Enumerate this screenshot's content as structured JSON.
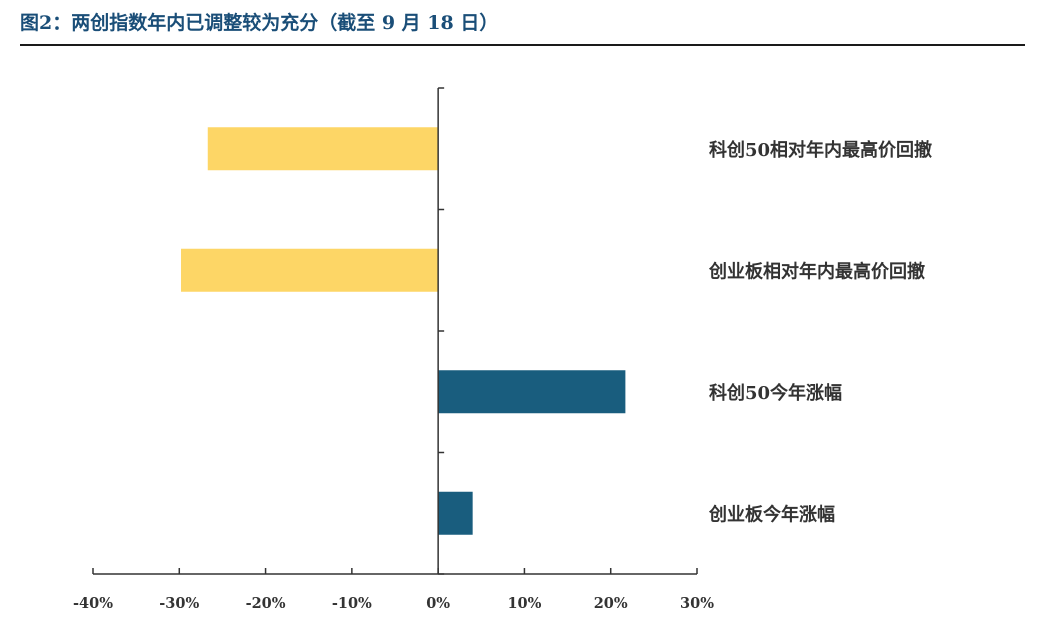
{
  "header": {
    "figure_title": "图2：两创指数年内已调整较为充分（截至 9 月 18 日）"
  },
  "chart_data": {
    "type": "bar",
    "orientation": "horizontal",
    "categories": [
      "科创50相对年内最高价回撤",
      "创业板相对年内最高价回撤",
      "科创50今年涨幅",
      "创业板今年涨幅"
    ],
    "values": [
      -26.7,
      -29.8,
      21.7,
      4.0
    ],
    "value_unit": "%",
    "xlim": [
      -40,
      30
    ],
    "xticks": [
      -40,
      -30,
      -20,
      -10,
      0,
      10,
      20,
      30
    ],
    "xtick_labels": [
      "-40%",
      "-30%",
      "-20%",
      "-10%",
      "0%",
      "10%",
      "20%",
      "30%"
    ],
    "title": "",
    "xlabel": "",
    "ylabel": "",
    "grid": false,
    "legend": "none",
    "colors": {
      "negative": "#fdd666",
      "positive": "#195d7e",
      "axis": "#333333",
      "title": "#1a4e78"
    }
  }
}
